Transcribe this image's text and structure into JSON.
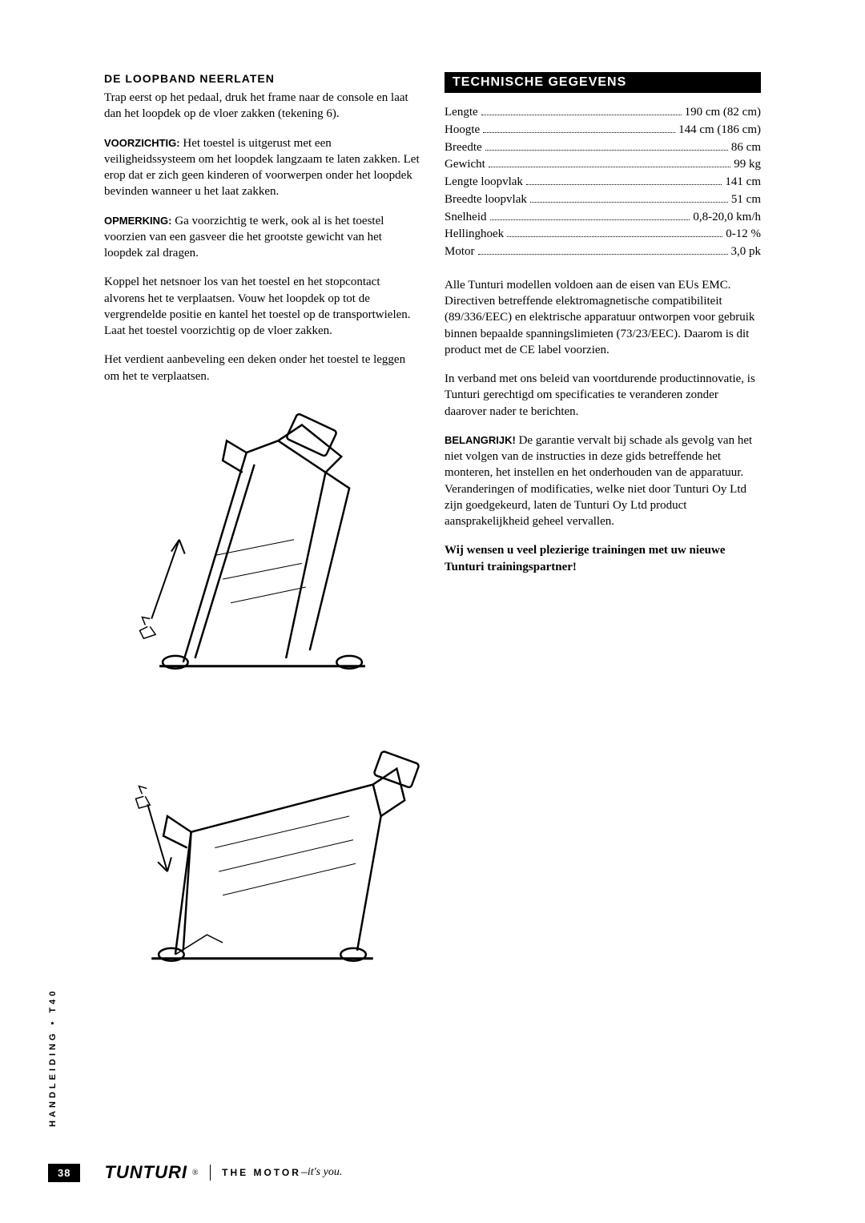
{
  "left": {
    "heading": "DE LOOPBAND NEERLATEN",
    "p1": "Trap eerst op het pedaal, druk het frame naar de console en laat dan het loopdek op de vloer zakken (tekening 6).",
    "p2_lead": "VOORZICHTIG:",
    "p2": " Het toestel is uitgerust met een veiligheidssysteem om het loopdek langzaam te laten zakken. Let erop dat er zich geen kinderen of voorwerpen onder het loopdek bevinden wanneer u het laat zakken.",
    "p3_lead": "OPMERKING:",
    "p3": " Ga voorzichtig te werk, ook al is het toestel voorzien van een gasveer die het grootste gewicht van het loopdek zal dragen.",
    "p4": "Koppel het netsnoer los van het toestel en het stopcontact alvorens het te verplaatsen. Vouw het loopdek op tot de vergrendelde positie en kantel het toestel op de transportwielen. Laat het toestel voorzichtig op de vloer zakken.",
    "p5": "Het verdient aanbeveling een deken onder het toestel te leggen om het te verplaatsen."
  },
  "right": {
    "section_title": "TECHNISCHE GEGEVENS",
    "specs": [
      {
        "label": "Lengte",
        "value": "190 cm (82 cm)"
      },
      {
        "label": "Hoogte",
        "value": "144 cm (186 cm)"
      },
      {
        "label": "Breedte",
        "value": "86 cm"
      },
      {
        "label": "Gewicht",
        "value": "99 kg"
      },
      {
        "label": "Lengte loopvlak",
        "value": "141 cm"
      },
      {
        "label": "Breedte loopvlak",
        "value": "51 cm"
      },
      {
        "label": "Snelheid",
        "value": "0,8-20,0 km/h"
      },
      {
        "label": "Hellinghoek",
        "value": "0-12 %"
      },
      {
        "label": "Motor",
        "value": "3,0 pk"
      }
    ],
    "p1": "Alle Tunturi modellen voldoen aan de eisen van EUs EMC. Directiven betreffende elektromagnetische compatibiliteit (89/336/EEC) en elektrische apparatuur ontworpen voor gebruik binnen bepaalde spanningslimieten (73/23/EEC). Daarom is dit product met de CE label voorzien.",
    "p2": "In verband met ons beleid van voortdurende productinnovatie, is Tunturi gerechtigd om specificaties te veranderen zonder daarover nader te berichten.",
    "p3_lead": "BELANGRIJK!",
    "p3": " De garantie vervalt bij schade als gevolg van het niet volgen van de instructies in deze gids betreffende het monteren, het instellen en het onderhouden van de apparatuur. Veranderingen of modificaties, welke niet door Tunturi Oy Ltd zijn goedgekeurd, laten de Tunturi Oy Ltd product aansprakelijkheid geheel vervallen.",
    "closing": "Wij wensen u veel plezierige trainingen met uw nieuwe Tunturi trainingspartner!"
  },
  "side_label": "HANDLEIDING • T40",
  "footer": {
    "page": "38",
    "brand": "TUNTURI",
    "reg": "®",
    "tagline_strong": "THE MOTOR",
    "tagline_dash": " – ",
    "tagline_em": "it's you."
  },
  "colors": {
    "bg": "#ffffff",
    "text": "#000000",
    "bar_bg": "#000000",
    "bar_text": "#ffffff"
  }
}
